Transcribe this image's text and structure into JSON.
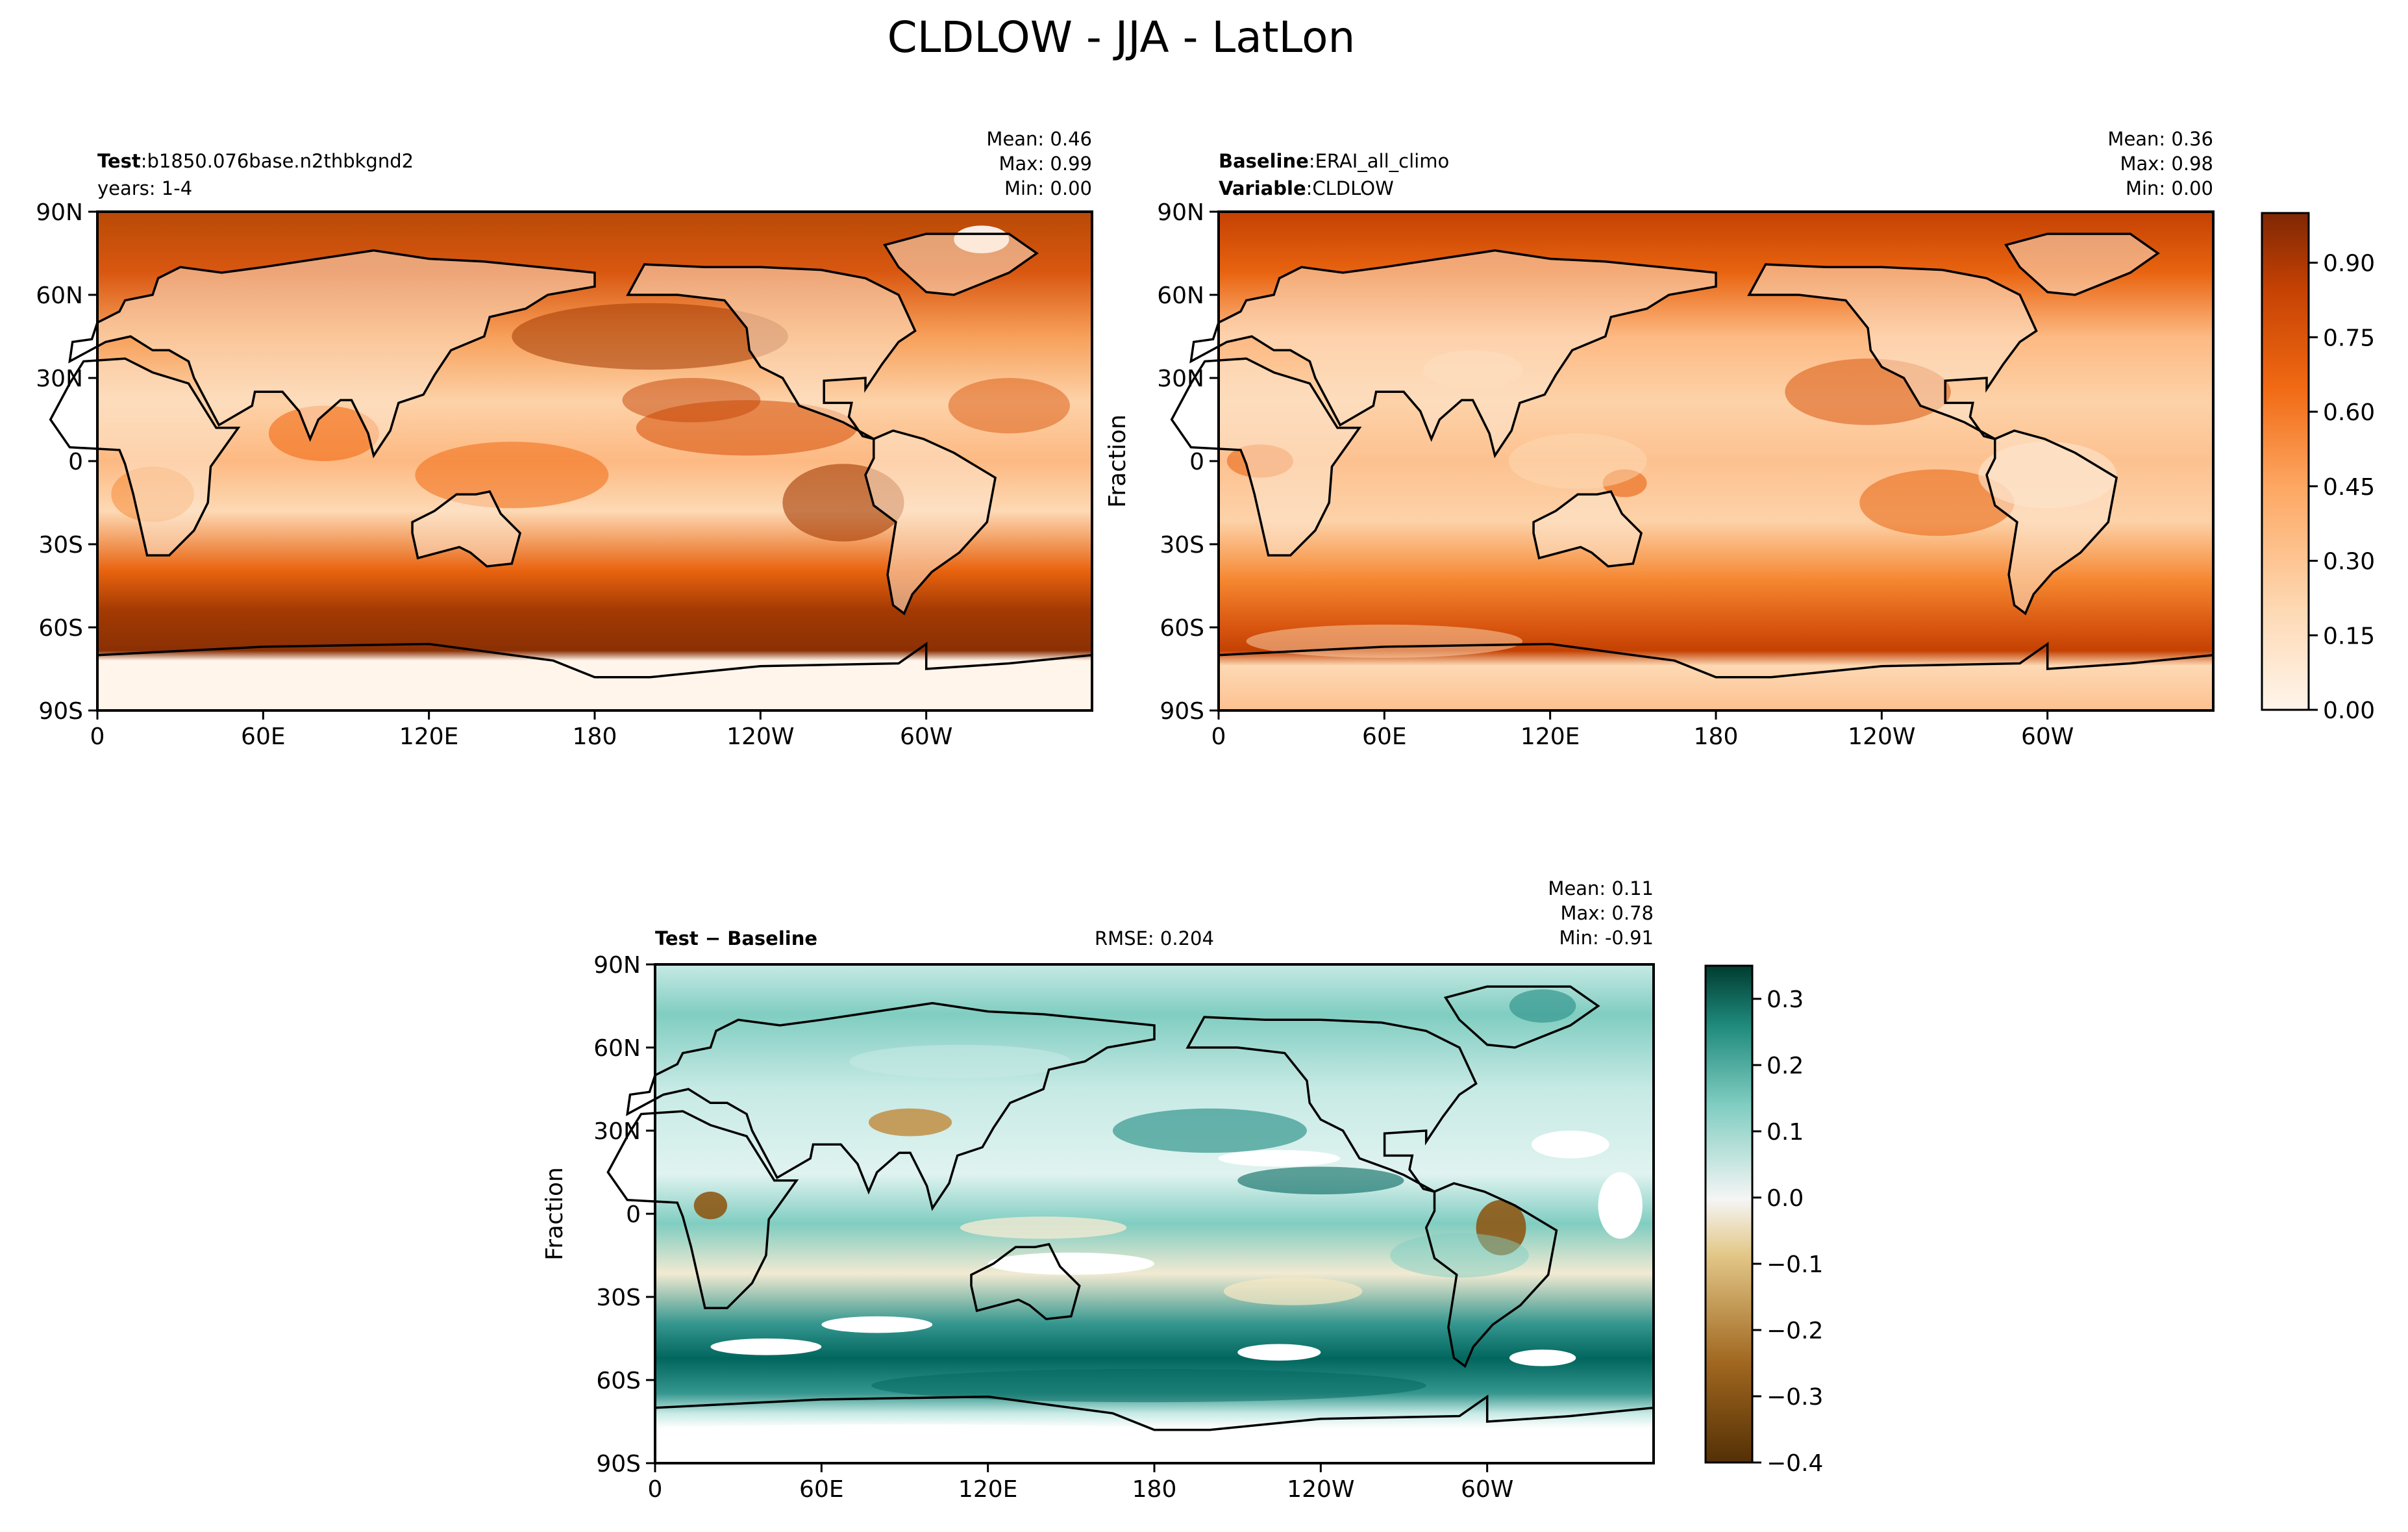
{
  "figure": {
    "title": "CLDLOW - JJA - LatLon"
  },
  "panels": {
    "test": {
      "label_key": "Test",
      "label_value": "b1850.076base.n2thbkgnd2",
      "subtitle": "years: 1-4",
      "stats": {
        "mean": "Mean:  0.46",
        "max": "Max:  0.99",
        "min": "Min:  0.00"
      }
    },
    "baseline": {
      "label_key": "Baseline",
      "label_value": "ERAI_all_climo",
      "variable_key": "Variable",
      "variable_value": "CLDLOW",
      "ylabel": "Fraction",
      "stats": {
        "mean": "Mean:  0.36",
        "max": "Max:  0.98",
        "min": "Min:  0.00"
      }
    },
    "diff": {
      "label": "Test − Baseline",
      "rmse": "RMSE: 0.204",
      "ylabel": "Fraction",
      "stats": {
        "mean": "Mean:  0.11",
        "max": "Max:  0.78",
        "min": "Min: -0.91"
      }
    }
  },
  "chart_data": [
    {
      "type": "heatmap",
      "panel": "test",
      "x_ticks": [
        "0",
        "60E",
        "120E",
        "180",
        "120W",
        "60W"
      ],
      "y_ticks": [
        "90N",
        "60N",
        "30N",
        "0",
        "30S",
        "60S",
        "90S"
      ],
      "xlim": [
        0,
        360
      ],
      "ylim": [
        -90,
        90
      ],
      "colormap": "Oranges",
      "mean": 0.46,
      "max": 0.99,
      "min": 0.0
    },
    {
      "type": "heatmap",
      "panel": "baseline",
      "x_ticks": [
        "0",
        "60E",
        "120E",
        "180",
        "120W",
        "60W"
      ],
      "y_ticks": [
        "90N",
        "60N",
        "30N",
        "0",
        "30S",
        "60S",
        "90S"
      ],
      "xlim": [
        0,
        360
      ],
      "ylim": [
        -90,
        90
      ],
      "colormap": "Oranges",
      "mean": 0.36,
      "max": 0.98,
      "min": 0.0,
      "colorbar": {
        "ticks": [
          "0.00",
          "0.15",
          "0.30",
          "0.45",
          "0.60",
          "0.75",
          "0.90"
        ],
        "range": [
          0,
          1
        ]
      }
    },
    {
      "type": "heatmap",
      "panel": "diff",
      "x_ticks": [
        "0",
        "60E",
        "120E",
        "180",
        "120W",
        "60W"
      ],
      "y_ticks": [
        "90N",
        "60N",
        "30N",
        "0",
        "30S",
        "60S",
        "90S"
      ],
      "xlim": [
        0,
        360
      ],
      "ylim": [
        -90,
        90
      ],
      "colormap": "BrBG",
      "mean": 0.11,
      "max": 0.78,
      "min": -0.91,
      "rmse": 0.204,
      "colorbar": {
        "ticks": [
          "0.3",
          "0.2",
          "0.1",
          "0.0",
          "−0.1",
          "−0.2",
          "−0.3",
          "−0.4"
        ],
        "range": [
          -0.4,
          0.35
        ]
      }
    }
  ],
  "colors": {
    "oranges_low": "#fff5eb",
    "oranges_mid": "#f16913",
    "oranges_high": "#7f2704",
    "brbg_neg": "#543005",
    "brbg_zero": "#f5f5f5",
    "brbg_pos": "#003c30"
  }
}
